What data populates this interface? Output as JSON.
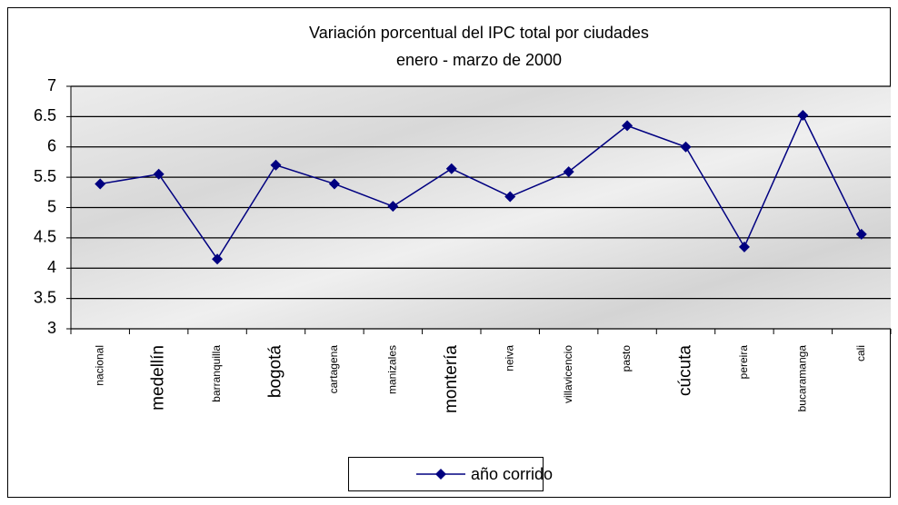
{
  "chart_data": {
    "type": "line",
    "title": "Variación porcentual del IPC total por ciudades",
    "subtitle": "enero - marzo de 2000",
    "categories": [
      "nacional",
      "medellín",
      "barranquilla",
      "bogotá",
      "cartagena",
      "manizales",
      "montería",
      "neiva",
      "villavicencio",
      "pasto",
      "cúcuta",
      "pereira",
      "bucaramanga",
      "cali"
    ],
    "series": [
      {
        "name": "año corrido",
        "color": "#000080",
        "values": [
          5.39,
          5.55,
          4.15,
          5.7,
          5.39,
          5.02,
          5.64,
          5.18,
          5.59,
          6.35,
          6.0,
          4.35,
          6.52,
          4.56
        ]
      }
    ],
    "ylim": [
      3,
      7
    ],
    "yticks": [
      3,
      3.5,
      4,
      4.5,
      5,
      5.5,
      6,
      6.5,
      7
    ],
    "grid": true,
    "legend": "bottom"
  }
}
